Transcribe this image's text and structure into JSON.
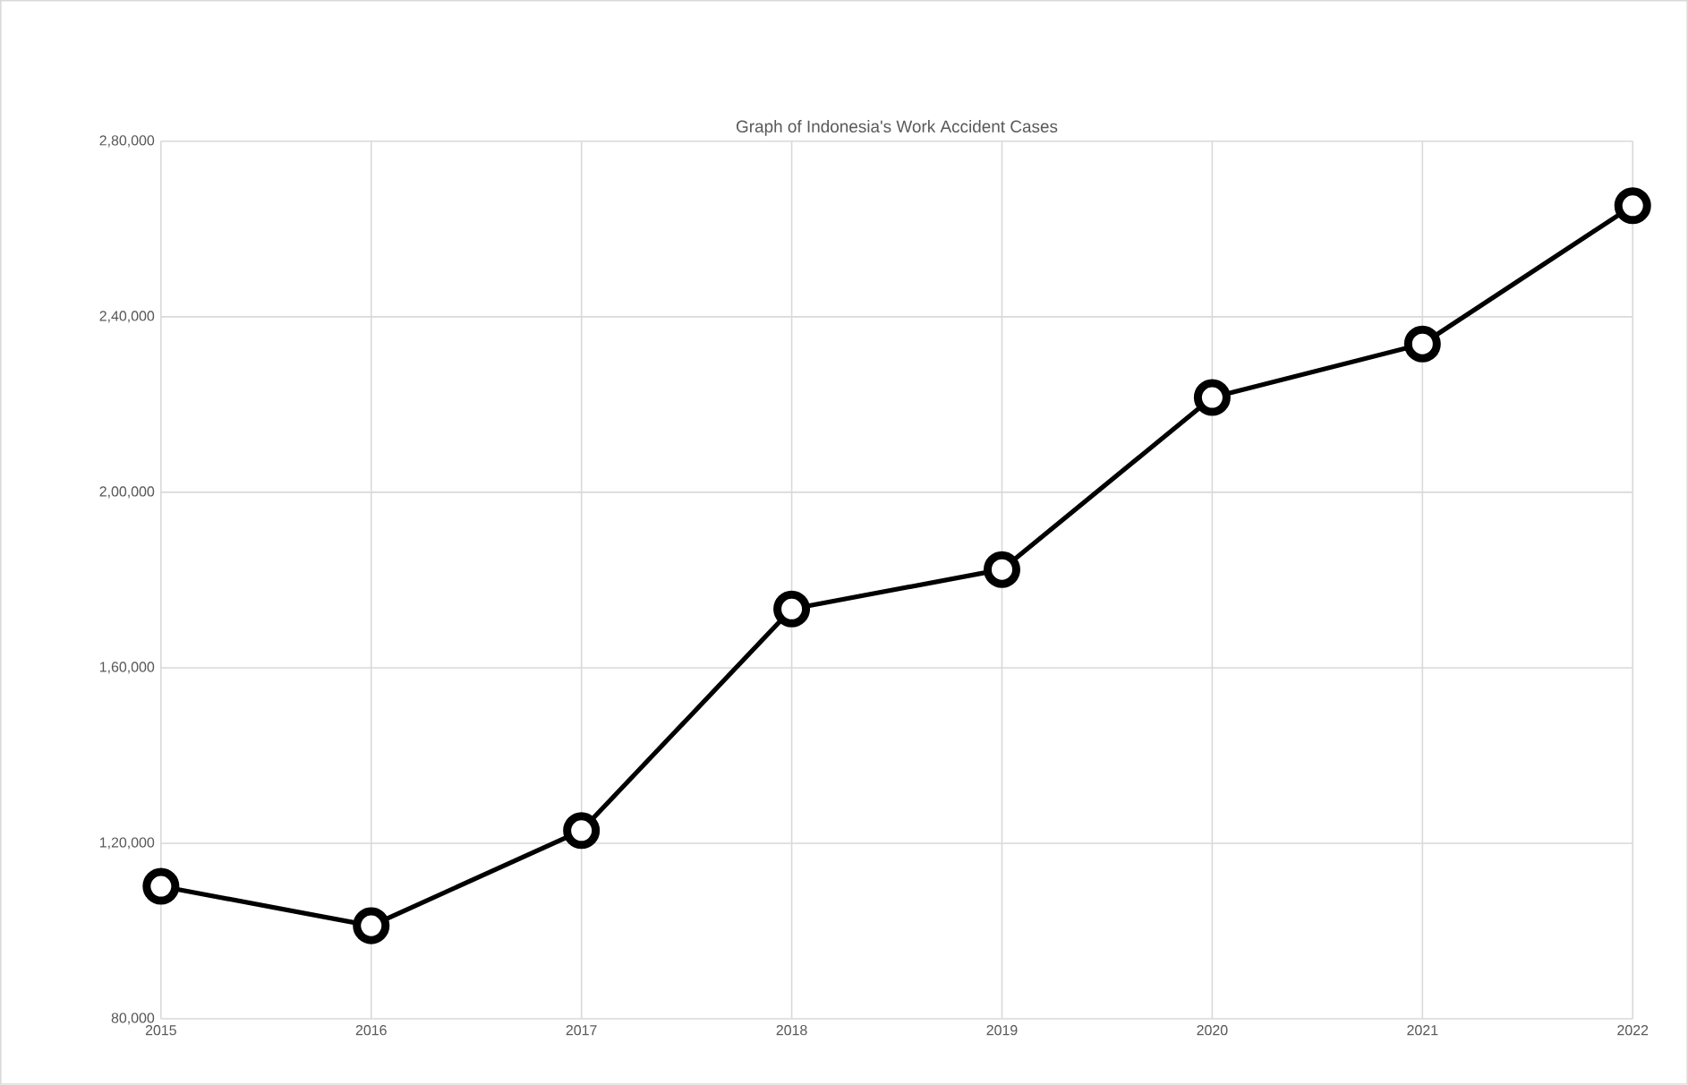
{
  "chart_data": {
    "type": "line",
    "title": "Graph of Indonesia's Work Accident Cases",
    "x": [
      2015,
      2016,
      2017,
      2018,
      2019,
      2020,
      2021,
      2022
    ],
    "values": [
      110200,
      101200,
      122900,
      173400,
      182400,
      221600,
      233800,
      265300
    ],
    "color": "#000000",
    "xlim": [
      2015,
      2022
    ],
    "xticks": [
      2015,
      2016,
      2017,
      2018,
      2019,
      2020,
      2021,
      2022
    ],
    "ylim": [
      80000,
      280000
    ],
    "yticks": [
      {
        "value": 80000,
        "label": "80,000"
      },
      {
        "value": 120000,
        "label": "1,20,000"
      },
      {
        "value": 160000,
        "label": "1,60,000"
      },
      {
        "value": 200000,
        "label": "2,00,000"
      },
      {
        "value": 240000,
        "label": "2,40,000"
      },
      {
        "value": 280000,
        "label": "2,80,000"
      }
    ],
    "grid": true,
    "marker": "circle",
    "line_style": "solid"
  }
}
